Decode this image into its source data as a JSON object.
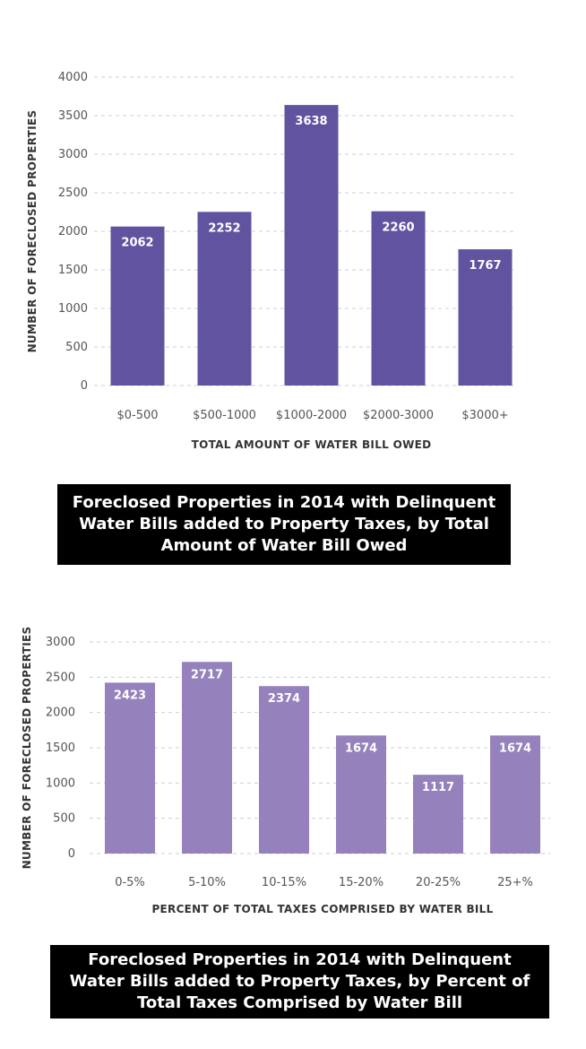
{
  "chart_data": [
    {
      "type": "bar",
      "categories": [
        "$0-500",
        "$500-1000",
        "$1000-2000",
        "$2000-3000",
        "$3000+"
      ],
      "values": [
        2062,
        2252,
        3638,
        2260,
        1767
      ],
      "ylabel": "NUMBER OF FORECLOSED PROPERTIES",
      "xlabel": "TOTAL AMOUNT OF WATER BILL OWED",
      "ylim": [
        0,
        4000
      ],
      "yticks": [
        0,
        500,
        1000,
        1500,
        2000,
        2500,
        3000,
        3500,
        4000
      ],
      "grid": true,
      "data_labels": true,
      "bar_color": "#6153a0",
      "caption": "Foreclosed Properties in 2014 with Delinquent Water Bills added to Property Taxes, by Total Amount of Water Bill Owed"
    },
    {
      "type": "bar",
      "categories": [
        "0-5%",
        "5-10%",
        "10-15%",
        "15-20%",
        "20-25%",
        "25+%"
      ],
      "values": [
        2423,
        2717,
        2374,
        1674,
        1117,
        1674
      ],
      "ylabel": "NUMBER OF FORECLOSED PROPERTIES",
      "xlabel": "PERCENT OF TOTAL TAXES COMPRISED BY WATER BILL",
      "ylim": [
        0,
        3000
      ],
      "yticks": [
        0,
        500,
        1000,
        1500,
        2000,
        2500,
        3000
      ],
      "grid": true,
      "data_labels": true,
      "bar_color": "#9581bb",
      "caption": "Foreclosed Properties in 2014 with Delinquent Water Bills added to Property Taxes, by Percent of Total Taxes Comprised by Water Bill"
    }
  ]
}
